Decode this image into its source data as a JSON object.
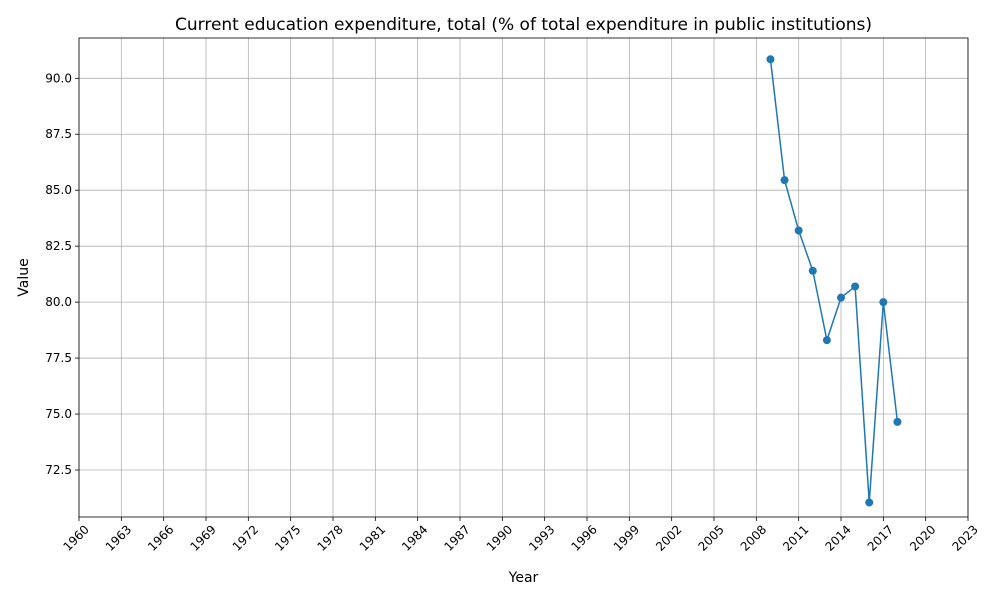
{
  "chart_data": {
    "type": "line",
    "title": "Current education expenditure, total (% of total expenditure in public institutions)",
    "xlabel": "Year",
    "ylabel": "Value",
    "xlim": [
      1960,
      2023
    ],
    "ylim": [
      70.4,
      91.8
    ],
    "x_ticks": [
      "1960",
      "1963",
      "1966",
      "1969",
      "1972",
      "1975",
      "1978",
      "1981",
      "1984",
      "1987",
      "1990",
      "1993",
      "1996",
      "1999",
      "2002",
      "2005",
      "2008",
      "2011",
      "2014",
      "2017",
      "2020",
      "2023"
    ],
    "y_ticks": [
      "72.5",
      "75.0",
      "77.5",
      "80.0",
      "82.5",
      "85.0",
      "87.5",
      "90.0"
    ],
    "grid": true,
    "line_color": "#1f77b4",
    "series": [
      {
        "name": "",
        "x": [
          2009,
          2010,
          2011,
          2012,
          2013,
          2014,
          2015,
          2016,
          2017,
          2018
        ],
        "values": [
          90.85,
          85.45,
          83.2,
          81.4,
          78.3,
          80.2,
          80.7,
          71.05,
          80.0,
          74.65
        ]
      }
    ]
  }
}
